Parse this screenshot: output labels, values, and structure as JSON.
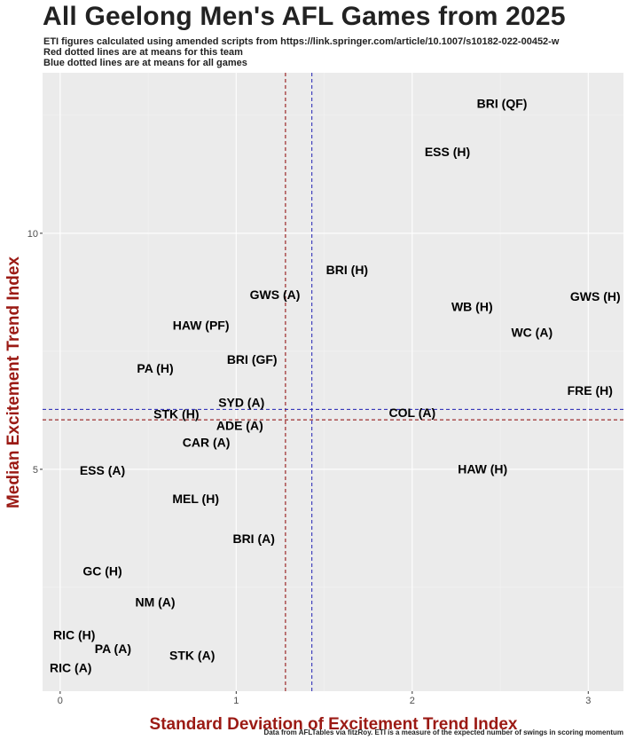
{
  "chart_data": {
    "type": "scatter",
    "title": "All Geelong Men's AFL Games from 2025",
    "subtitle_lines": [
      "ETI figures calculated using amended scripts from https://link.springer.com/article/10.1007/s10182-022-00452-w",
      "Red dotted lines are at means for this team",
      "Blue dotted lines are at means for all games"
    ],
    "xlabel": "Standard Deviation of Excitement Trend Index",
    "ylabel": "Median Excitement Trend Index",
    "caption": "Data from AFLTables via fitzRoy. ETI is a measure of the expected number of swings in scoring momentum",
    "xlim": [
      -0.1,
      3.2
    ],
    "ylim": [
      0.3,
      13.4
    ],
    "x_ticks": [
      0,
      1,
      2,
      3
    ],
    "y_ticks": [
      5,
      10
    ],
    "x_tick_labels": [
      "0",
      "1",
      "2",
      "3"
    ],
    "y_tick_labels": [
      "5",
      "10"
    ],
    "grid": true,
    "team_mean": {
      "x": 1.28,
      "y": 6.05
    },
    "all_games_mean": {
      "x": 1.43,
      "y": 6.27
    },
    "points": [
      {
        "label": "BRI (QF)",
        "x": 2.51,
        "y": 12.75
      },
      {
        "label": "ESS (H)",
        "x": 2.2,
        "y": 11.73
      },
      {
        "label": "BRI (H)",
        "x": 1.63,
        "y": 9.23
      },
      {
        "label": "GWS (A)",
        "x": 1.22,
        "y": 8.7
      },
      {
        "label": "WB (H)",
        "x": 2.34,
        "y": 8.45
      },
      {
        "label": "GWS (H)",
        "x": 3.04,
        "y": 8.66
      },
      {
        "label": "HAW (PF)",
        "x": 0.8,
        "y": 8.05
      },
      {
        "label": "WC (A)",
        "x": 2.68,
        "y": 7.9
      },
      {
        "label": "BRI (GF)",
        "x": 1.09,
        "y": 7.33
      },
      {
        "label": "PA (H)",
        "x": 0.54,
        "y": 7.14
      },
      {
        "label": "FRE (H)",
        "x": 3.01,
        "y": 6.67
      },
      {
        "label": "SYD (A)",
        "x": 1.03,
        "y": 6.42
      },
      {
        "label": "COL (A)",
        "x": 2.0,
        "y": 6.2
      },
      {
        "label": "STK (H)",
        "x": 0.66,
        "y": 6.17
      },
      {
        "label": "ADE (A)",
        "x": 1.02,
        "y": 5.93
      },
      {
        "label": "CAR (A)",
        "x": 0.83,
        "y": 5.57
      },
      {
        "label": "ESS (A)",
        "x": 0.24,
        "y": 4.98
      },
      {
        "label": "HAW (H)",
        "x": 2.4,
        "y": 5.01
      },
      {
        "label": "MEL (H)",
        "x": 0.77,
        "y": 4.38
      },
      {
        "label": "BRI (A)",
        "x": 1.1,
        "y": 3.53
      },
      {
        "label": "GC (H)",
        "x": 0.24,
        "y": 2.85
      },
      {
        "label": "NM (A)",
        "x": 0.54,
        "y": 2.19
      },
      {
        "label": "RIC (H)",
        "x": 0.08,
        "y": 1.49
      },
      {
        "label": "PA (A)",
        "x": 0.3,
        "y": 1.2
      },
      {
        "label": "STK (A)",
        "x": 0.75,
        "y": 1.06
      },
      {
        "label": "RIC (A)",
        "x": 0.06,
        "y": 0.8
      }
    ],
    "colors": {
      "panel": "#ebebeb",
      "grid_major": "#ffffff",
      "grid_minor": "#f3f3f3",
      "team_mean_line": "#8b0000",
      "all_mean_line": "#1f1fb4",
      "axis_label": "#9b1a14",
      "point_label": "#000000"
    }
  }
}
